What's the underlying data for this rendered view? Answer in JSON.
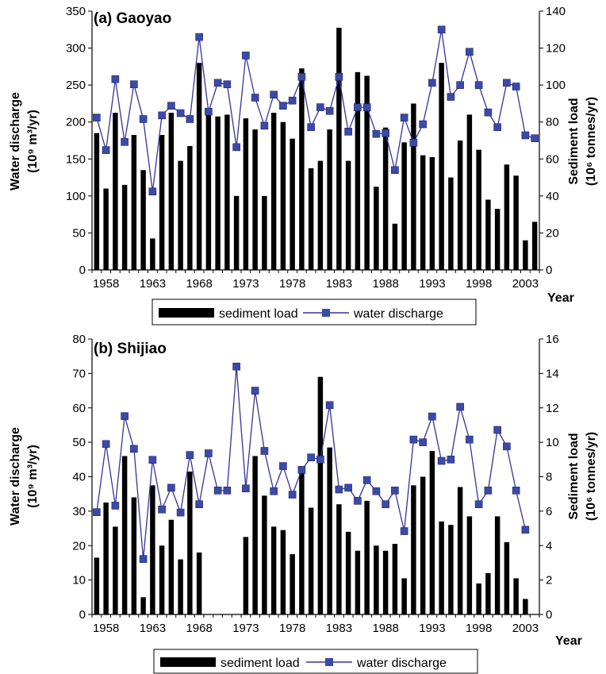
{
  "chart_data": [
    {
      "type": "bar+line",
      "title": "(a) Gaoyao",
      "ylabel_left": "Water discharge",
      "ylabel_left_unit": "(10⁹ m³/yr)",
      "ylabel_right": "Sediment load",
      "ylabel_right_unit": "(10⁶ tonnes/yr)",
      "xlabel": "Year",
      "ylim_left": [
        0,
        350
      ],
      "ylim_right": [
        0,
        140
      ],
      "left_ticks": [
        "0",
        "50",
        "100",
        "150",
        "200",
        "250",
        "300",
        "350"
      ],
      "right_ticks": [
        "0",
        "20",
        "40",
        "60",
        "80",
        "100",
        "120",
        "140"
      ],
      "x_ticks": [
        "1958",
        "1963",
        "1968",
        "1973",
        "1978",
        "1983",
        "1988",
        "1993",
        "1998",
        "2003"
      ],
      "legend": {
        "position": "bottom",
        "bar_label": "sediment load",
        "line_label": "water discharge"
      },
      "years": [
        1957,
        1958,
        1959,
        1960,
        1961,
        1962,
        1963,
        1964,
        1965,
        1966,
        1967,
        1968,
        1969,
        1970,
        1971,
        1972,
        1973,
        1974,
        1975,
        1976,
        1977,
        1978,
        1979,
        1980,
        1981,
        1982,
        1983,
        1984,
        1985,
        1986,
        1987,
        1988,
        1989,
        1990,
        1991,
        1992,
        1993,
        1994,
        1995,
        1996,
        1997,
        1998,
        1999,
        2000,
        2001,
        2002,
        2003,
        2004
      ],
      "sediment_load": [
        74,
        44,
        85,
        46,
        73,
        54,
        17,
        73,
        85,
        59,
        67,
        112,
        84,
        83,
        84,
        40,
        82,
        76,
        40,
        85,
        80,
        71,
        109,
        55,
        59,
        76,
        131,
        59,
        107,
        105,
        45,
        77,
        25,
        69,
        90,
        62,
        61,
        112,
        50,
        70,
        84,
        65,
        38,
        33,
        57,
        51,
        16,
        26
      ],
      "water_discharge": [
        206,
        162,
        258,
        173,
        251,
        204,
        106,
        209,
        222,
        212,
        204,
        315,
        214,
        253,
        251,
        166,
        290,
        233,
        195,
        237,
        222,
        229,
        261,
        193,
        220,
        215,
        261,
        187,
        220,
        220,
        184,
        185,
        135,
        206,
        172,
        197,
        253,
        325,
        234,
        250,
        295,
        250,
        213,
        193,
        253,
        248,
        182,
        178
      ],
      "colors": {
        "bar": "#000000",
        "line": "#333399",
        "marker": "#3b4aa8"
      }
    },
    {
      "type": "bar+line",
      "title": "(b) Shijiao",
      "ylabel_left": "Water discharge",
      "ylabel_left_unit": "(10⁹ m³/yr)",
      "ylabel_right": "Sediment load",
      "ylabel_right_unit": "(10⁶ tonnes/yr)",
      "xlabel": "Year",
      "ylim_left": [
        0,
        80
      ],
      "ylim_right": [
        0,
        16
      ],
      "left_ticks": [
        "0",
        "10",
        "20",
        "30",
        "40",
        "50",
        "60",
        "70",
        "80"
      ],
      "right_ticks": [
        "0",
        "2",
        "4",
        "6",
        "8",
        "10",
        "12",
        "14",
        "16"
      ],
      "x_ticks": [
        "1958",
        "1963",
        "1968",
        "1973",
        "1978",
        "1983",
        "1988",
        "1993",
        "1998",
        "2003"
      ],
      "legend": {
        "position": "bottom",
        "bar_label": "sediment load",
        "line_label": "water discharge"
      },
      "years": [
        1957,
        1958,
        1959,
        1960,
        1961,
        1962,
        1963,
        1964,
        1965,
        1966,
        1967,
        1968,
        1969,
        1970,
        1971,
        1972,
        1973,
        1974,
        1975,
        1976,
        1977,
        1978,
        1979,
        1980,
        1981,
        1982,
        1983,
        1984,
        1985,
        1986,
        1987,
        1988,
        1989,
        1990,
        1991,
        1992,
        1993,
        1994,
        1995,
        1996,
        1997,
        1998,
        1999,
        2000,
        2001,
        2002,
        2003,
        2004
      ],
      "sediment_load": [
        3.3,
        6.5,
        5.1,
        9.2,
        6.8,
        1.0,
        7.5,
        4.0,
        5.5,
        3.2,
        8.3,
        3.6,
        null,
        null,
        null,
        null,
        4.5,
        9.2,
        6.9,
        5.1,
        4.9,
        3.5,
        8.3,
        6.2,
        13.8,
        9.7,
        6.4,
        4.8,
        3.7,
        6.6,
        4.0,
        3.7,
        4.1,
        2.1,
        7.5,
        8.0,
        9.5,
        5.4,
        5.2,
        7.4,
        5.7,
        1.8,
        2.4,
        5.7,
        4.2,
        2.1,
        0.9,
        null
      ],
      "water_discharge": [
        29.7,
        49.5,
        31.6,
        57.6,
        48.1,
        16.1,
        44.9,
        30.5,
        36.8,
        29.6,
        46.3,
        32.0,
        46.8,
        36.0,
        36.0,
        72.0,
        36.6,
        65.0,
        47.5,
        35.8,
        43.1,
        34.8,
        42.0,
        45.6,
        45.0,
        60.8,
        36.3,
        36.8,
        33.0,
        39.0,
        35.8,
        32.0,
        36.0,
        24.2,
        50.8,
        50.0,
        57.5,
        44.6,
        45.0,
        60.3,
        50.8,
        32.0,
        36.0,
        53.6,
        48.8,
        36.0,
        24.6,
        null
      ],
      "colors": {
        "bar": "#000000",
        "line": "#333399",
        "marker": "#3b4aa8"
      }
    }
  ]
}
